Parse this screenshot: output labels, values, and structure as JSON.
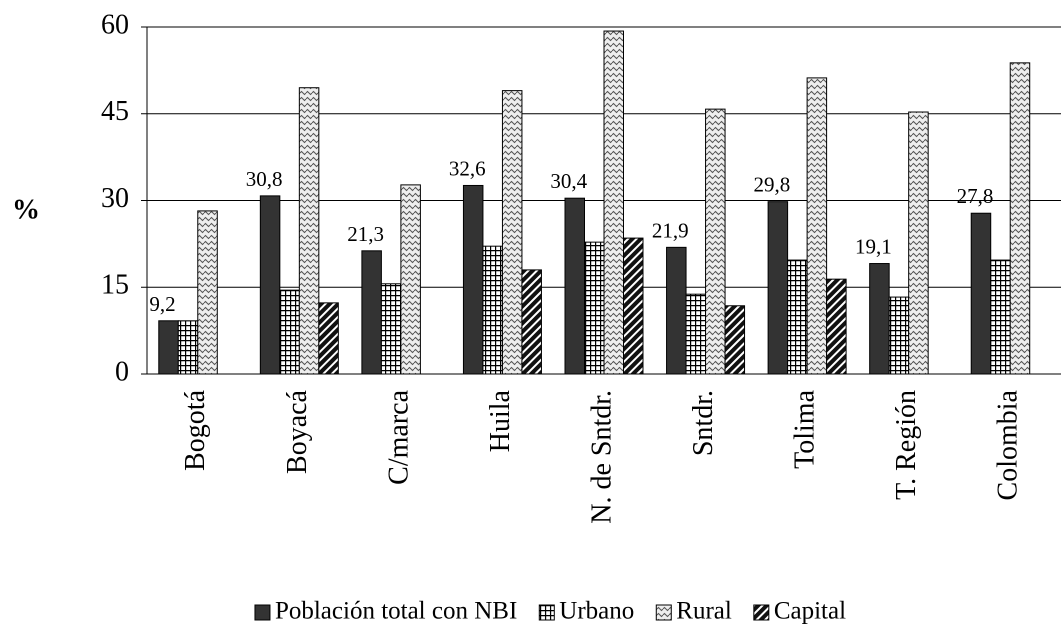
{
  "chart_data": {
    "type": "bar",
    "ylabel": "%",
    "categories": [
      "Bogotá",
      "Boyacá",
      "C/marca",
      "Huila",
      "N. de Sntdr.",
      "Sntdr.",
      "Tolima",
      "T. Región",
      "Colombia"
    ],
    "series": [
      {
        "name": "Población total con NBI",
        "color": "#333333",
        "pattern": "solid",
        "values": [
          9.2,
          30.8,
          21.3,
          32.6,
          30.4,
          21.9,
          29.8,
          19.1,
          27.8
        ],
        "value_labels": [
          "9,2",
          "30,8",
          "21,3",
          "32,6",
          "30,4",
          "21,9",
          "29,8",
          "19,1",
          "27,8"
        ]
      },
      {
        "name": "Urbano",
        "color": "#000000",
        "pattern": "grid",
        "values": [
          9.2,
          14.5,
          15.6,
          22.1,
          22.8,
          13.8,
          19.7,
          13.3,
          19.7
        ]
      },
      {
        "name": "Rural",
        "color": "#d0d0d0",
        "pattern": "wave",
        "values": [
          28.2,
          49.5,
          32.7,
          49.0,
          59.3,
          45.8,
          51.2,
          45.3,
          53.8
        ]
      },
      {
        "name": "Capital",
        "color": "#000000",
        "pattern": "diagonal",
        "values": [
          null,
          12.3,
          null,
          18.0,
          23.5,
          11.8,
          16.4,
          null,
          null
        ]
      }
    ],
    "ylim": [
      0,
      60
    ],
    "yticks": [
      0,
      15,
      30,
      45,
      60
    ],
    "grid": true,
    "legend": "bottom"
  }
}
